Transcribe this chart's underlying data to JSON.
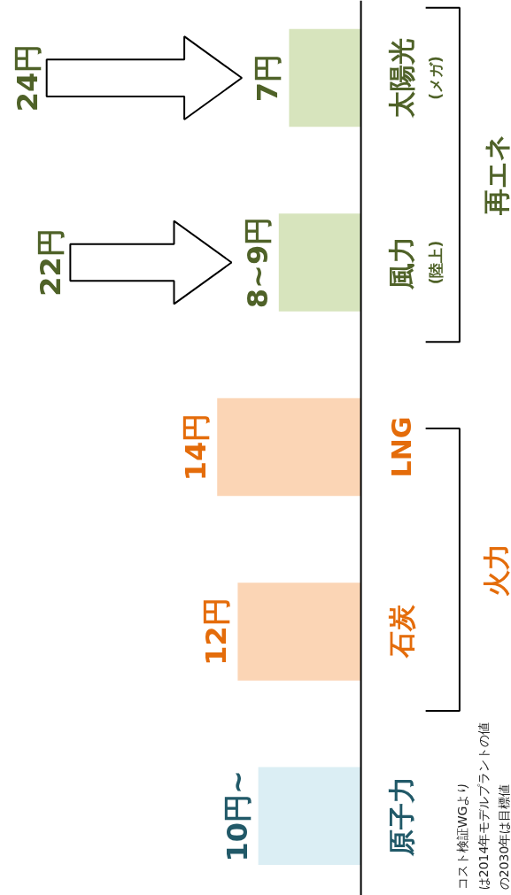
{
  "chart_data": {
    "type": "bar",
    "orientation": "horizontal",
    "categories": [
      "太陽光\n(メガ)",
      "風力\n(陸上)",
      "LNG",
      "石炭",
      "原子力"
    ],
    "values": [
      7,
      8,
      14,
      12,
      10
    ],
    "colors": [
      "#d7e4bd",
      "#d7e4bd",
      "#fbd5b5",
      "#fbd5b5",
      "#dbeef4"
    ],
    "value_labels": [
      "7円",
      "8~9円",
      "14円",
      "12円",
      "10円~"
    ],
    "xlim": [
      35.1,
      -14.65
    ],
    "tick_labels": false,
    "grid": false,
    "annotations": [
      "24円",
      "22円",
      "再エネ",
      "火力",
      "コスト検証WGより",
      "は2014年モデルプラントの値",
      "の2030年は目標値"
    ]
  }
}
